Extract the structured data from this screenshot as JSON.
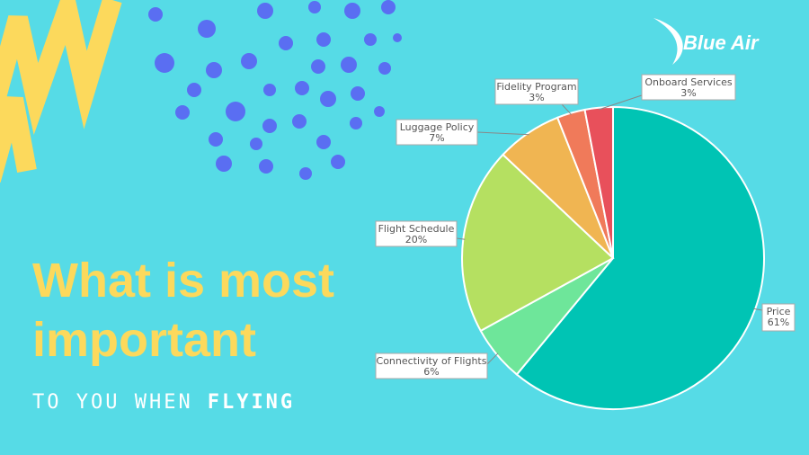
{
  "chart_data": {
    "type": "pie",
    "title_lines": [
      "What is most",
      "important"
    ],
    "subtitle_parts": [
      "TO YOU WHEN",
      "FLYING"
    ],
    "brand": "Blue Air",
    "categories": [
      "Price",
      "Connectivity of Flights",
      "Flight Schedule",
      "Luggage Policy",
      "Fidelity Program",
      "Onboard Services"
    ],
    "values": [
      61,
      6,
      20,
      7,
      3,
      3
    ],
    "value_labels": [
      "61%",
      "6%",
      "20%",
      "7%",
      "3%",
      "3%"
    ],
    "colors": [
      "#00c4b4",
      "#6ee69a",
      "#b5e061",
      "#f0b552",
      "#f07a5a",
      "#e8505b"
    ]
  }
}
